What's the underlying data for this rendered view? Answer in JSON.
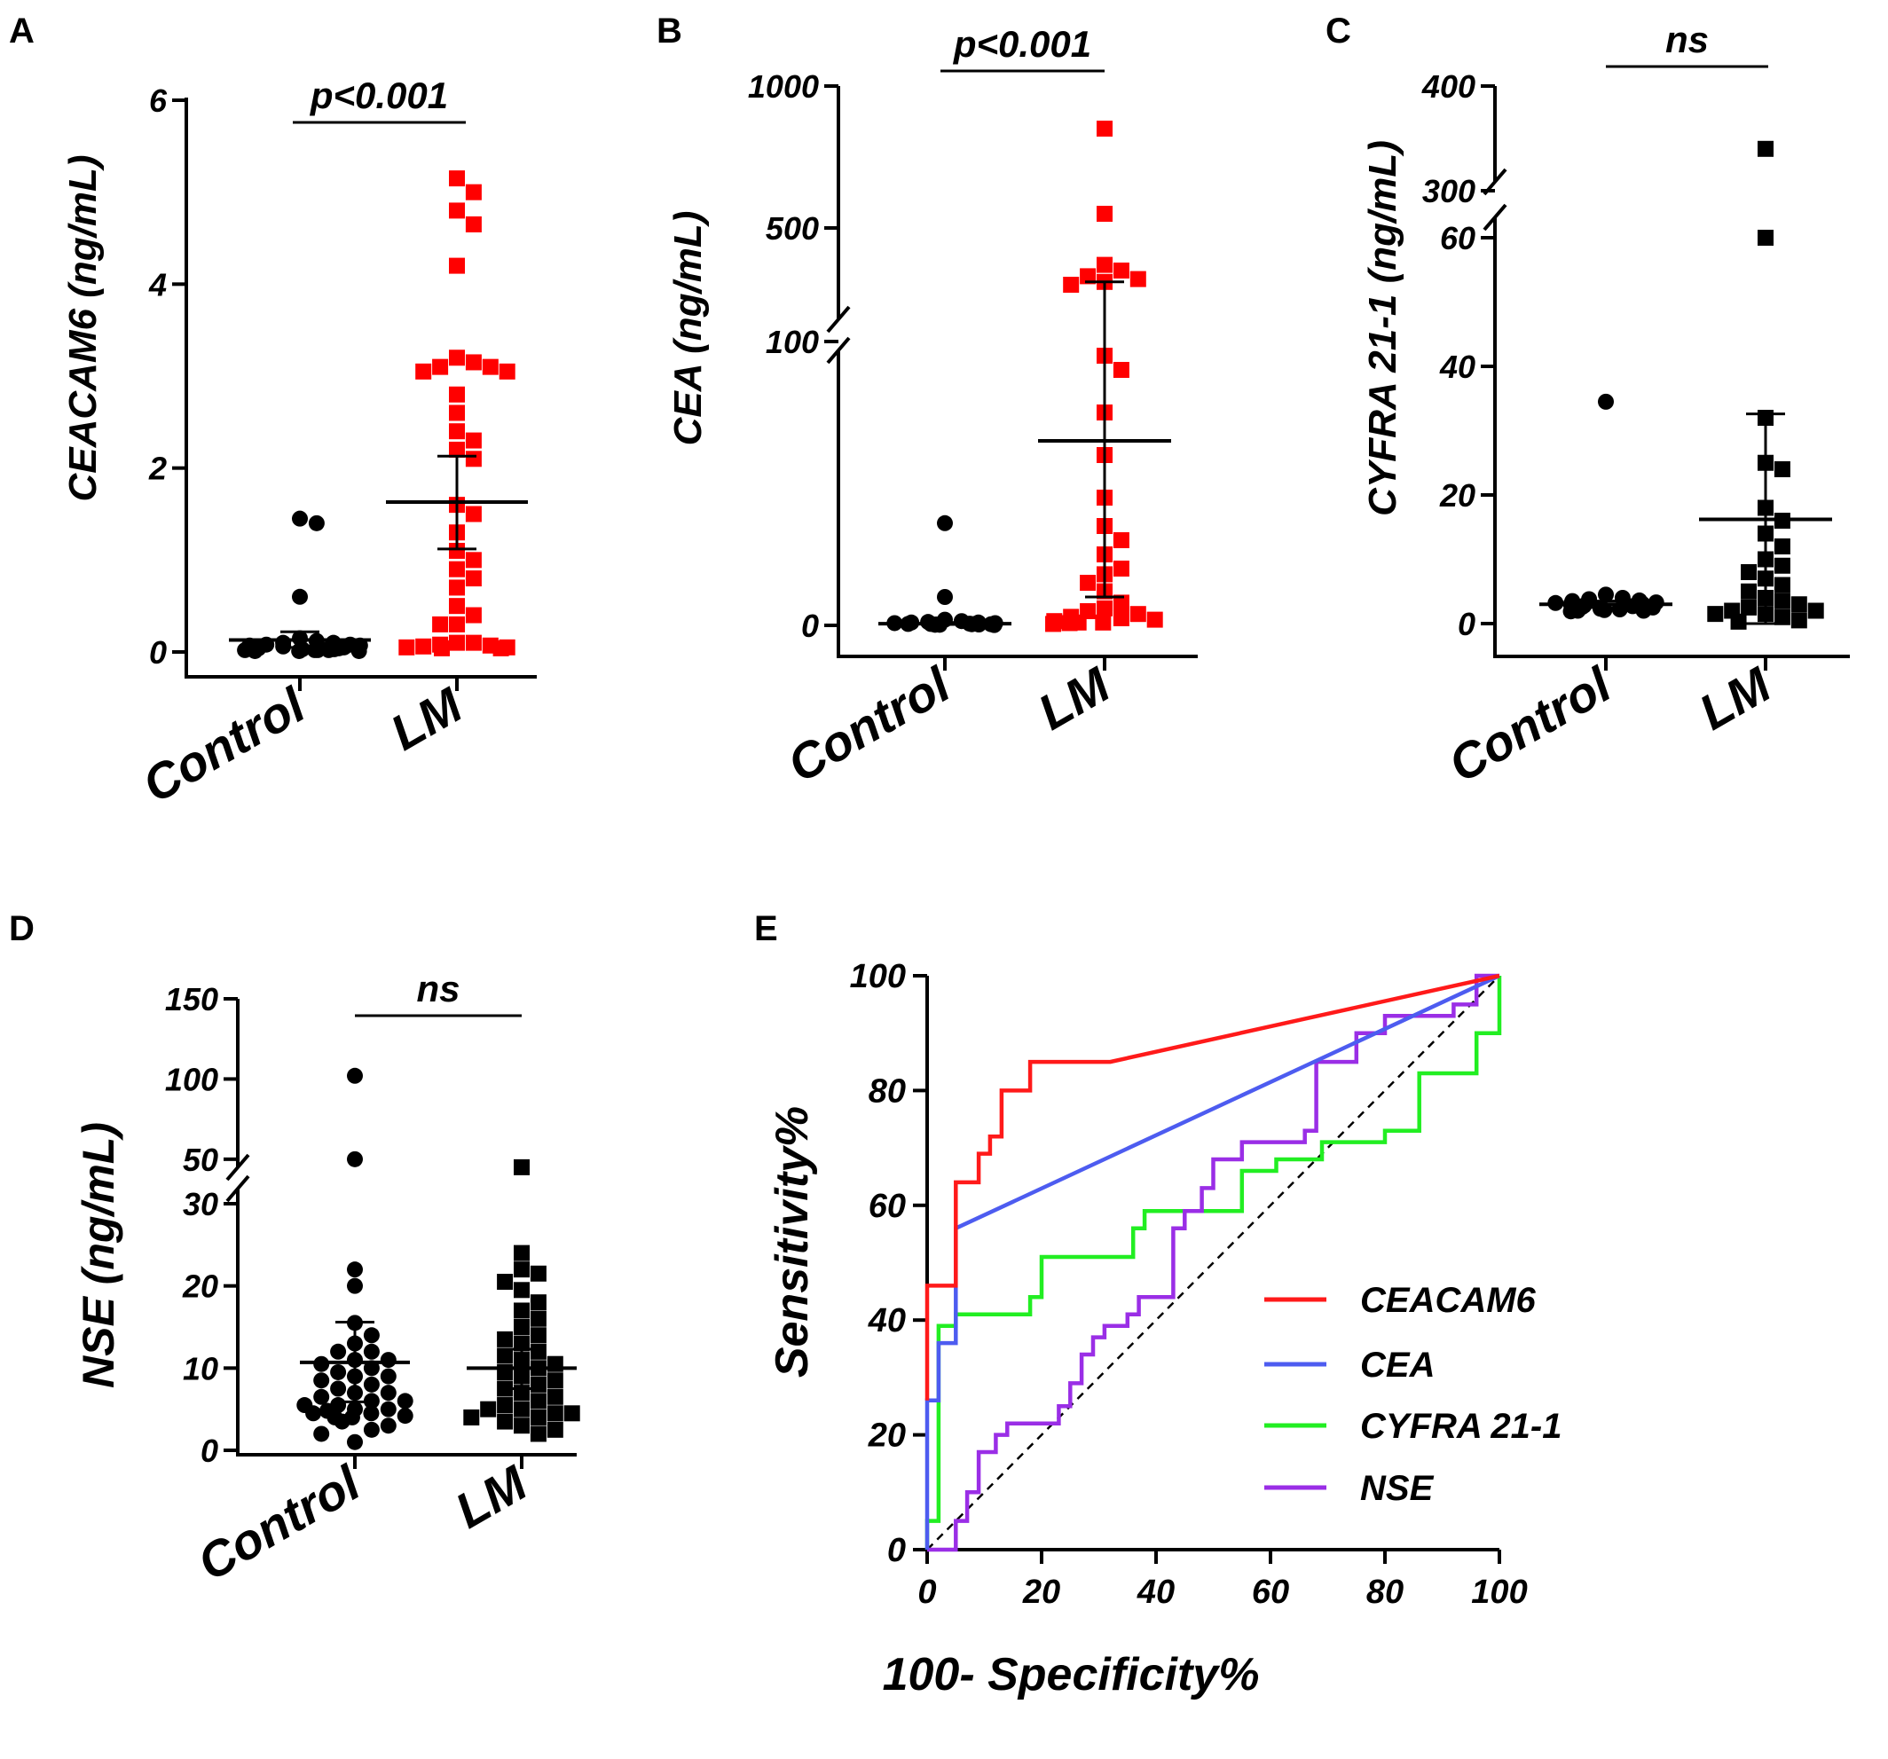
{
  "colors": {
    "control": "#000000",
    "lm_red": "#ff0000",
    "lm_black": "#000000",
    "ceacam6": "#ff1a1a",
    "cea": "#4d5cf0",
    "cyfra": "#22ee22",
    "nse": "#9a2ee6"
  },
  "panels": {
    "A": {
      "letter": "A",
      "ylabel": "CEACAM6 (ng/mL)",
      "sig": "p<0.001",
      "categories": [
        "Control",
        "LM"
      ],
      "ticks": [
        "0",
        "2",
        "4",
        "6"
      ]
    },
    "B": {
      "letter": "B",
      "ylabel": "CEA (ng/mL)",
      "sig": "p<0.001",
      "categories": [
        "Control",
        "LM"
      ],
      "ticks": [
        "0",
        "100",
        "500",
        "1000"
      ]
    },
    "C": {
      "letter": "C",
      "ylabel": "CYFRA 21-1 (ng/mL)",
      "sig": "ns",
      "categories": [
        "Control",
        "LM"
      ],
      "ticks": [
        "0",
        "20",
        "40",
        "60",
        "300",
        "400"
      ]
    },
    "D": {
      "letter": "D",
      "ylabel": "NSE (ng/mL)",
      "sig": "ns",
      "categories": [
        "Control",
        "LM"
      ],
      "ticks": [
        "0",
        "10",
        "20",
        "30",
        "50",
        "100",
        "150"
      ]
    },
    "E": {
      "letter": "E",
      "xlabel": "100- Specificity%",
      "ylabel": "Sensitivity%",
      "xticks": [
        "0",
        "20",
        "40",
        "60",
        "80",
        "100"
      ],
      "yticks": [
        "0",
        "20",
        "40",
        "60",
        "80",
        "100"
      ],
      "legend": [
        "CEACAM6",
        "CEA",
        "CYFRA 21-1",
        "NSE"
      ]
    }
  },
  "chart_data": [
    {
      "panel": "A",
      "type": "scatter",
      "ylabel": "CEACAM6 (ng/mL)",
      "ylim": [
        0,
        6
      ],
      "categories": [
        "Control",
        "LM"
      ],
      "annotation": "p<0.001",
      "series": [
        {
          "name": "Control",
          "mean": 0.13,
          "sd": [
            0.05,
            0.22
          ],
          "values": [
            1.45,
            1.4,
            0.6,
            0.15,
            0.12,
            0.1,
            0.1,
            0.08,
            0.08,
            0.07,
            0.07,
            0.06,
            0.06,
            0.05,
            0.05,
            0.05,
            0.04,
            0.04,
            0.03,
            0.03,
            0.03,
            0.02,
            0.02,
            0.02,
            0.02,
            0.01,
            0.01,
            0.01
          ]
        },
        {
          "name": "LM",
          "mean": 1.63,
          "sd": [
            1.12,
            2.13
          ],
          "values": [
            5.15,
            5.0,
            4.8,
            4.65,
            4.2,
            3.2,
            3.15,
            3.1,
            3.1,
            3.05,
            3.05,
            2.8,
            2.6,
            2.4,
            2.3,
            2.2,
            2.1,
            1.6,
            1.5,
            1.3,
            1.1,
            1.0,
            0.9,
            0.8,
            0.7,
            0.5,
            0.4,
            0.3,
            0.3,
            0.1,
            0.1,
            0.08,
            0.07,
            0.06,
            0.05,
            0.05,
            0.04,
            0.04
          ]
        }
      ]
    },
    {
      "panel": "B",
      "type": "scatter",
      "ylabel": "CEA (ng/mL)",
      "y_axis_break": [
        100,
        100
      ],
      "y_ticks": [
        0,
        100,
        500,
        1000
      ],
      "categories": [
        "Control",
        "LM"
      ],
      "annotation": "p<0.001",
      "series": [
        {
          "name": "Control",
          "mean": 0.6,
          "sd": [
            0.3,
            1.0
          ],
          "values": [
            36,
            10,
            2,
            1.5,
            1.2,
            1,
            1,
            0.8,
            0.8,
            0.6,
            0.6,
            0.5,
            0.5,
            0.4,
            0.4,
            0.3,
            0.3,
            0.2,
            0.2,
            0.1
          ]
        },
        {
          "name": "LM",
          "mean": 65,
          "sd": [
            10,
            310
          ],
          "values": [
            850,
            550,
            370,
            350,
            330,
            320,
            310,
            300,
            95,
            90,
            75,
            60,
            45,
            35,
            30,
            25,
            20,
            18,
            15,
            12,
            8,
            6,
            5,
            4,
            3,
            2.5,
            2,
            1.5,
            1,
            1,
            0.8,
            0.5
          ]
        }
      ]
    },
    {
      "panel": "C",
      "type": "scatter",
      "ylabel": "CYFRA 21-1 (ng/mL)",
      "y_axis_break": [
        60,
        300
      ],
      "y_ticks": [
        0,
        20,
        40,
        60,
        300,
        400
      ],
      "categories": [
        "Control",
        "LM"
      ],
      "annotation": "ns",
      "series": [
        {
          "name": "Control",
          "mean": 3.0,
          "sd": [
            2.5,
            3.5
          ],
          "values": [
            34.5,
            4.5,
            4,
            3.8,
            3.6,
            3.5,
            3.3,
            3.2,
            3.1,
            3,
            2.9,
            2.8,
            2.7,
            2.6,
            2.5,
            2.4,
            2.3,
            2.2,
            2.1,
            2,
            2,
            1.9
          ]
        },
        {
          "name": "LM",
          "mean": 16.2,
          "sd": [
            0,
            32.6
          ],
          "values": [
            340,
            60,
            32,
            25,
            24,
            18,
            16,
            14,
            12,
            10,
            9,
            8,
            7,
            6,
            5,
            4,
            3.5,
            3,
            2.5,
            2,
            2,
            1.5,
            1.5,
            1,
            0.5,
            0.3
          ]
        }
      ]
    },
    {
      "panel": "D",
      "type": "scatter",
      "ylabel": "NSE (ng/mL)",
      "y_axis_break": [
        30,
        30
      ],
      "y_ticks": [
        0,
        10,
        20,
        30,
        50,
        100,
        150
      ],
      "categories": [
        "Control",
        "LM"
      ],
      "annotation": "ns",
      "series": [
        {
          "name": "Control",
          "mean": 10.7,
          "sd": [
            5.9,
            15.6
          ],
          "values": [
            102,
            50,
            22,
            20,
            15.5,
            14,
            13,
            12,
            12,
            11,
            11,
            10.5,
            10,
            9.5,
            9,
            9,
            8.5,
            8,
            7.5,
            7,
            7,
            6.5,
            6,
            6,
            5.5,
            5.5,
            5,
            5,
            4.8,
            4.5,
            4.5,
            4.2,
            4,
            4,
            3.5,
            3,
            2.5,
            2,
            1
          ]
        },
        {
          "name": "LM",
          "mean": 10.0,
          "sd": [
            7.5,
            12.3
          ],
          "values": [
            45,
            24,
            22,
            21.5,
            20.5,
            19.5,
            18,
            17,
            16,
            15,
            14,
            13.5,
            13,
            12,
            11.5,
            11,
            10.5,
            10,
            9.5,
            9,
            8.5,
            8,
            7.5,
            7,
            6.5,
            6,
            5.5,
            5,
            5,
            4.5,
            4.5,
            4,
            4,
            3.5,
            3,
            2.5,
            2
          ]
        }
      ]
    },
    {
      "panel": "E",
      "type": "line",
      "xlabel": "100- Specificity%",
      "ylabel": "Sensitivity%",
      "xlim": [
        0,
        100
      ],
      "ylim": [
        0,
        100
      ],
      "reference_line": [
        [
          0,
          0
        ],
        [
          100,
          100
        ]
      ],
      "series": [
        {
          "name": "CEACAM6",
          "color": "#ff1a1a",
          "points": [
            [
              0,
              26
            ],
            [
              0,
              46
            ],
            [
              5,
              46
            ],
            [
              5,
              64
            ],
            [
              9,
              64
            ],
            [
              9,
              69
            ],
            [
              11,
              69
            ],
            [
              11,
              72
            ],
            [
              13,
              72
            ],
            [
              13,
              80
            ],
            [
              18,
              80
            ],
            [
              18,
              85
            ],
            [
              32,
              85
            ],
            [
              100,
              100
            ]
          ]
        },
        {
          "name": "CEA",
          "color": "#4d5cf0",
          "points": [
            [
              0,
              0
            ],
            [
              0,
              26
            ],
            [
              2,
              26
            ],
            [
              2,
              36
            ],
            [
              5,
              36
            ],
            [
              5,
              56
            ],
            [
              100,
              100
            ]
          ]
        },
        {
          "name": "CYFRA 21-1",
          "color": "#22ee22",
          "points": [
            [
              0,
              0
            ],
            [
              0,
              5
            ],
            [
              2,
              5
            ],
            [
              2,
              39
            ],
            [
              5,
              39
            ],
            [
              5,
              41
            ],
            [
              18,
              41
            ],
            [
              18,
              44
            ],
            [
              20,
              44
            ],
            [
              20,
              51
            ],
            [
              36,
              51
            ],
            [
              36,
              56
            ],
            [
              38,
              56
            ],
            [
              38,
              59
            ],
            [
              55,
              59
            ],
            [
              55,
              66
            ],
            [
              61,
              66
            ],
            [
              61,
              68
            ],
            [
              69,
              68
            ],
            [
              69,
              71
            ],
            [
              80,
              71
            ],
            [
              80,
              73
            ],
            [
              86,
              73
            ],
            [
              86,
              83
            ],
            [
              96,
              83
            ],
            [
              96,
              90
            ],
            [
              100,
              90
            ],
            [
              100,
              100
            ]
          ]
        },
        {
          "name": "NSE",
          "color": "#9a2ee6",
          "points": [
            [
              0,
              0
            ],
            [
              5,
              0
            ],
            [
              5,
              5
            ],
            [
              7,
              5
            ],
            [
              7,
              10
            ],
            [
              9,
              10
            ],
            [
              9,
              17
            ],
            [
              12,
              17
            ],
            [
              12,
              20
            ],
            [
              14,
              20
            ],
            [
              14,
              22
            ],
            [
              23,
              22
            ],
            [
              23,
              25
            ],
            [
              25,
              25
            ],
            [
              25,
              29
            ],
            [
              27,
              29
            ],
            [
              27,
              34
            ],
            [
              29,
              34
            ],
            [
              29,
              37
            ],
            [
              31,
              37
            ],
            [
              31,
              39
            ],
            [
              35,
              39
            ],
            [
              35,
              41
            ],
            [
              37,
              41
            ],
            [
              37,
              44
            ],
            [
              43,
              44
            ],
            [
              43,
              56
            ],
            [
              45,
              56
            ],
            [
              45,
              59
            ],
            [
              48,
              59
            ],
            [
              48,
              63
            ],
            [
              50,
              63
            ],
            [
              50,
              68
            ],
            [
              55,
              68
            ],
            [
              55,
              71
            ],
            [
              66,
              71
            ],
            [
              66,
              73
            ],
            [
              68,
              73
            ],
            [
              68,
              85
            ],
            [
              75,
              85
            ],
            [
              75,
              90
            ],
            [
              80,
              90
            ],
            [
              80,
              93
            ],
            [
              92,
              93
            ],
            [
              92,
              95
            ],
            [
              96,
              95
            ],
            [
              96,
              100
            ],
            [
              100,
              100
            ]
          ]
        }
      ]
    }
  ]
}
